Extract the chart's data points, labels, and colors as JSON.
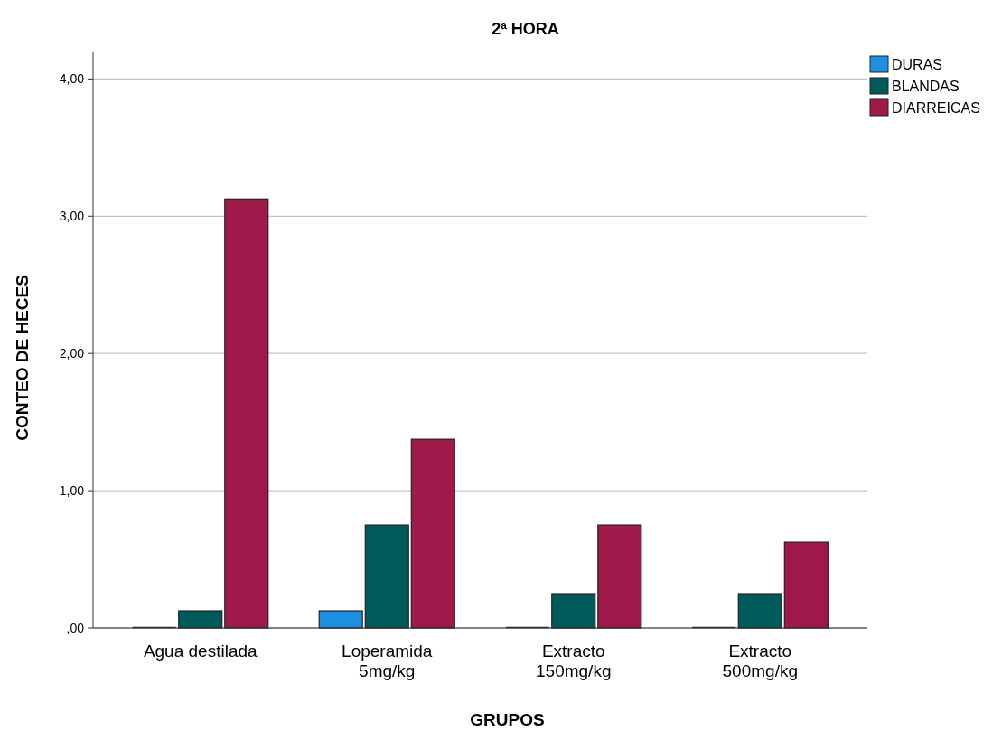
{
  "chart_data": {
    "type": "bar",
    "title": "2ª HORA",
    "xlabel": "GRUPOS",
    "ylabel": "CONTEO DE HECES",
    "categories": [
      "Agua destilada",
      "Loperamida\n5mg/kg",
      "Extracto\n150mg/kg",
      "Extracto\n500mg/kg"
    ],
    "series": [
      {
        "name": "DURAS",
        "color": "#1e8fe1",
        "values": [
          0,
          0.125,
          0,
          0
        ]
      },
      {
        "name": "BLANDAS",
        "color": "#005a5a",
        "values": [
          0.125,
          0.75,
          0.25,
          0.25
        ]
      },
      {
        "name": "DIARREICAS",
        "color": "#a0194b",
        "values": [
          3.125,
          1.375,
          0.75,
          0.625
        ]
      }
    ],
    "ylim": [
      0,
      4.2
    ],
    "yticks": [
      {
        "value": 0,
        "label": ",00"
      },
      {
        "value": 1,
        "label": "1,00"
      },
      {
        "value": 2,
        "label": "2,00"
      },
      {
        "value": 3,
        "label": "3,00"
      },
      {
        "value": 4,
        "label": "4,00"
      }
    ],
    "grid": "y",
    "legend": "top right"
  }
}
